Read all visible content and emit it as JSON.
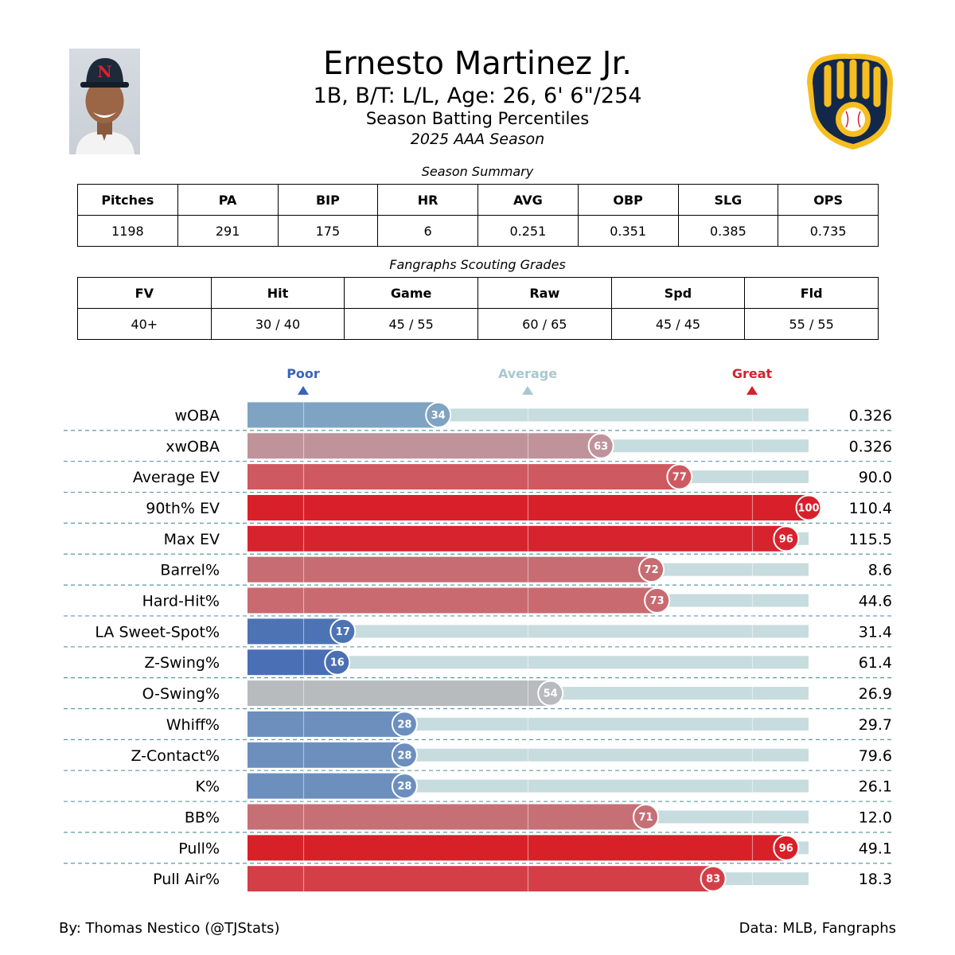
{
  "header": {
    "name": "Ernesto Martinez Jr.",
    "info": "1B, B/T: L/L, Age: 26, 6' 6\"/254",
    "subtitle": "Season Batting Percentiles",
    "season": "2025 AAA Season"
  },
  "headshot": {
    "cap_letter": "N"
  },
  "season_summary": {
    "caption": "Season Summary",
    "headers": [
      "Pitches",
      "PA",
      "BIP",
      "HR",
      "AVG",
      "OBP",
      "SLG",
      "OPS"
    ],
    "values": [
      "1198",
      "291",
      "175",
      "6",
      "0.251",
      "0.351",
      "0.385",
      "0.735"
    ]
  },
  "scouting": {
    "caption": "Fangraphs Scouting Grades",
    "headers": [
      "FV",
      "Hit",
      "Game",
      "Raw",
      "Spd",
      "Fld"
    ],
    "values": [
      "40+",
      "30 / 40",
      "45 / 55",
      "60 / 65",
      "45 / 45",
      "55 / 55"
    ]
  },
  "legend": {
    "poor": "Poor",
    "average": "Average",
    "great": "Great",
    "poor_color": "#3a63b8",
    "average_color": "#a9c7d0",
    "great_color": "#d62030"
  },
  "chart_data": {
    "type": "bar",
    "orientation": "horizontal",
    "title": "Season Batting Percentiles",
    "xlim": [
      0,
      100
    ],
    "reference_lines": [
      10,
      50,
      90
    ],
    "categories": [
      "wOBA",
      "xwOBA",
      "Average EV",
      "90th% EV",
      "Max EV",
      "Barrel%",
      "Hard-Hit%",
      "LA Sweet-Spot%",
      "Z-Swing%",
      "O-Swing%",
      "Whiff%",
      "Z-Contact%",
      "K%",
      "BB%",
      "Pull%",
      "Pull Air%"
    ],
    "percentiles": [
      34,
      63,
      77,
      100,
      96,
      72,
      73,
      17,
      16,
      54,
      28,
      28,
      28,
      71,
      96,
      83
    ],
    "stat_values": [
      "0.326",
      "0.326",
      "90.0",
      "110.4",
      "115.5",
      "8.6",
      "44.6",
      "31.4",
      "61.4",
      "26.9",
      "29.7",
      "79.6",
      "26.1",
      "12.0",
      "49.1",
      "18.3"
    ],
    "colors": [
      "#7fa3c2",
      "#c0939b",
      "#cf5960",
      "#d8202a",
      "#d7232d",
      "#c66c72",
      "#c96a71",
      "#4d73b4",
      "#4a6fb5",
      "#b8bbbe",
      "#6d8fbe",
      "#6d8fbe",
      "#6d8fbe",
      "#c67075",
      "#d82029",
      "#d43f47"
    ],
    "track_color": "#c7dcde"
  },
  "footer": {
    "credit": "By: Thomas Nestico (@TJStats)",
    "source": "Data: MLB, Fangraphs"
  }
}
